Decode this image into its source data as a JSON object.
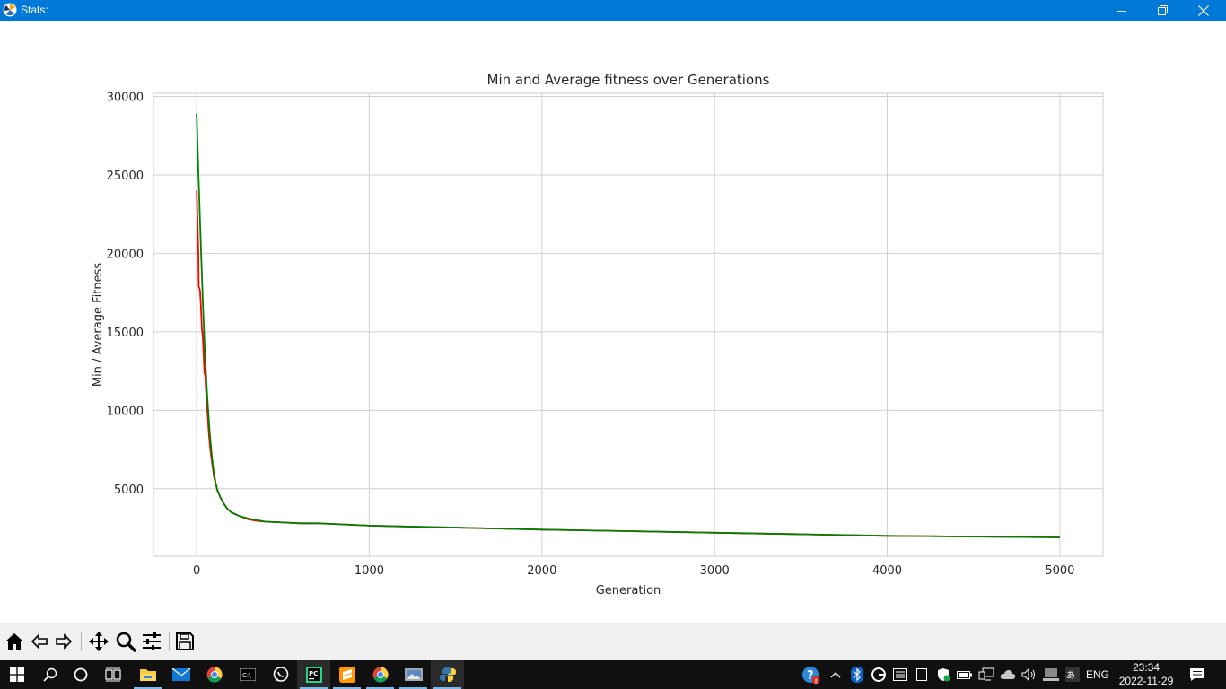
{
  "window": {
    "title": "Stats:"
  },
  "toolbar": {
    "buttons": [
      "home-icon",
      "back-arrow-icon",
      "forward-arrow-icon",
      "pan-icon",
      "zoom-icon",
      "configure-subplots-icon",
      "save-icon"
    ]
  },
  "taskbar": {
    "apps": [
      "windows-start-icon",
      "search-icon",
      "cortana-icon",
      "task-view-icon",
      "file-explorer-icon",
      "mail-icon",
      "chrome-icon",
      "terminal-icon",
      "whatsapp-icon",
      "pycharm-icon",
      "sublime-icon",
      "chrome-alt-icon",
      "photos-icon",
      "python-icon"
    ],
    "language": "ENG",
    "time": "23:34",
    "date": "2022-11-29"
  },
  "colors": {
    "min_line": "#ff0000",
    "avg_line": "#008000",
    "titlebar": "#0078d7"
  },
  "chart_data": {
    "type": "line",
    "title": "Min and Average fitness over Generations",
    "xlabel": "Generation",
    "ylabel": "Min / Average Fitness",
    "xlim": [
      -250,
      5250
    ],
    "ylim": [
      700,
      30200
    ],
    "x_ticks": [
      0,
      1000,
      2000,
      3000,
      4000,
      5000
    ],
    "y_ticks": [
      5000,
      10000,
      15000,
      20000,
      25000,
      30000
    ],
    "grid": true,
    "series": [
      {
        "color": "#ff0000",
        "x": [
          0,
          5,
          10,
          12,
          15,
          20,
          25,
          30,
          35,
          40,
          45,
          50,
          55,
          60,
          65,
          70,
          75,
          80,
          90,
          100,
          110,
          120,
          140,
          160,
          180,
          200,
          250,
          300,
          350,
          400,
          500,
          600,
          700,
          800,
          900,
          1000,
          1200,
          1400,
          1600,
          1800,
          2000,
          2500,
          3000,
          3500,
          4000,
          4500,
          5000
        ],
        "y": [
          24000,
          22000,
          20000,
          17900,
          17800,
          17600,
          16600,
          15200,
          14800,
          13700,
          12400,
          12200,
          11100,
          10300,
          9500,
          8600,
          8000,
          7400,
          6600,
          5800,
          5300,
          4900,
          4400,
          4000,
          3700,
          3500,
          3250,
          3050,
          2950,
          2900,
          2850,
          2800,
          2800,
          2750,
          2700,
          2650,
          2600,
          2550,
          2500,
          2450,
          2400,
          2300,
          2200,
          2100,
          2000,
          1950,
          1900
        ]
      },
      {
        "color": "#008000",
        "x": [
          0,
          5,
          10,
          15,
          20,
          25,
          30,
          35,
          40,
          45,
          50,
          55,
          60,
          65,
          70,
          75,
          80,
          90,
          100,
          110,
          120,
          140,
          160,
          180,
          200,
          250,
          300,
          350,
          400,
          500,
          600,
          700,
          800,
          900,
          1000,
          1200,
          1400,
          1600,
          1800,
          2000,
          2500,
          3000,
          3500,
          4000,
          4500,
          5000
        ],
        "y": [
          28900,
          27000,
          25200,
          23600,
          22000,
          20300,
          18700,
          17200,
          15800,
          14500,
          13300,
          12200,
          11200,
          10300,
          9500,
          8700,
          8000,
          6900,
          6000,
          5400,
          4900,
          4400,
          4000,
          3700,
          3500,
          3250,
          3100,
          3000,
          2900,
          2850,
          2800,
          2800,
          2750,
          2700,
          2650,
          2600,
          2550,
          2500,
          2450,
          2400,
          2300,
          2200,
          2100,
          2000,
          1950,
          1900
        ]
      }
    ]
  }
}
